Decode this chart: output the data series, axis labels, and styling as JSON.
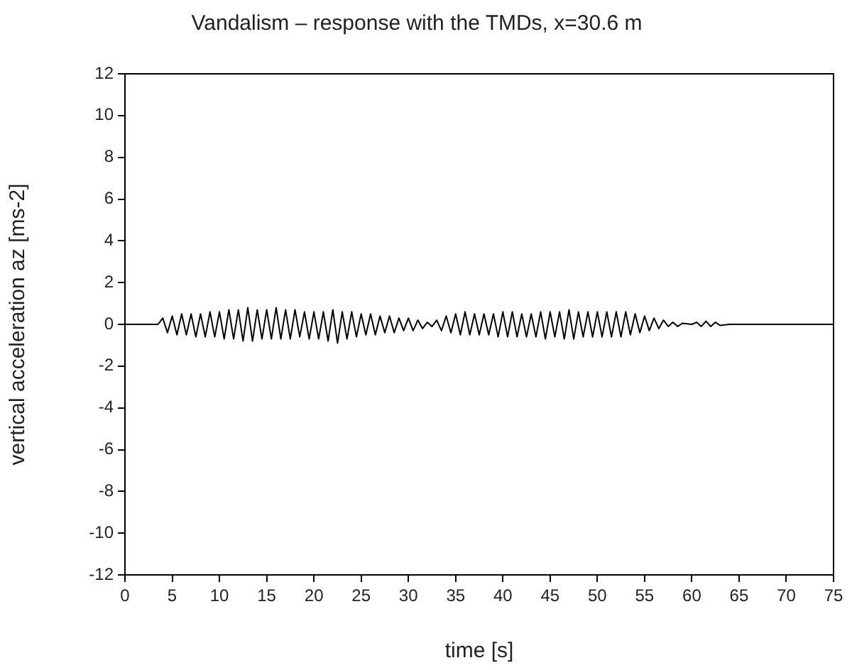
{
  "chart_data": {
    "type": "line",
    "title": "Vandalism – response with the TMDs, x=30.6 m",
    "xlabel": "time [s]",
    "ylabel": "vertical acceleration az [ms-2]",
    "xlim": [
      0,
      75
    ],
    "xticks": [
      0,
      5,
      10,
      15,
      20,
      25,
      30,
      35,
      40,
      45,
      50,
      55,
      60,
      65,
      70,
      75
    ],
    "ylim": [
      -12,
      12
    ],
    "yticks": [
      -12,
      -10,
      -8,
      -6,
      -4,
      -2,
      0,
      2,
      4,
      6,
      8,
      10,
      12
    ],
    "grid": false,
    "legend": false,
    "marker": "none",
    "line_style": "solid",
    "series": [
      {
        "color": "#000000",
        "x": [
          0,
          3.5,
          4,
          4.5,
          5,
          5.5,
          6,
          6.5,
          7,
          7.5,
          8,
          8.5,
          9,
          9.5,
          10,
          10.5,
          11,
          11.5,
          12,
          12.5,
          13,
          13.5,
          14,
          14.5,
          15,
          15.5,
          16,
          16.5,
          17,
          17.5,
          18,
          18.5,
          19,
          19.5,
          20,
          20.5,
          21,
          21.5,
          22,
          22.5,
          23,
          23.5,
          24,
          24.5,
          25,
          25.5,
          26,
          26.5,
          27,
          27.5,
          28,
          28.5,
          29,
          29.5,
          30,
          30.5,
          31,
          31.5,
          32,
          32.5,
          33,
          33.5,
          34,
          34.5,
          35,
          35.5,
          36,
          36.5,
          37,
          37.5,
          38,
          38.5,
          39,
          39.5,
          40,
          40.5,
          41,
          41.5,
          42,
          42.5,
          43,
          43.5,
          44,
          44.5,
          45,
          45.5,
          46,
          46.5,
          47,
          47.5,
          48,
          48.5,
          49,
          49.5,
          50,
          50.5,
          51,
          51.5,
          52,
          52.5,
          53,
          53.5,
          54,
          54.5,
          55,
          55.5,
          56,
          56.5,
          57,
          57.5,
          58,
          58.5,
          59,
          60,
          60.5,
          61,
          61.5,
          62,
          62.5,
          63,
          64,
          75
        ],
        "values": [
          0,
          0,
          0.3,
          -0.4,
          0.4,
          -0.5,
          0.5,
          -0.5,
          0.5,
          -0.6,
          0.5,
          -0.6,
          0.6,
          -0.6,
          0.6,
          -0.7,
          0.7,
          -0.7,
          0.7,
          -0.8,
          0.8,
          -0.8,
          0.7,
          -0.7,
          0.7,
          -0.7,
          0.8,
          -0.7,
          0.7,
          -0.7,
          0.7,
          -0.6,
          0.6,
          -0.7,
          0.6,
          -0.7,
          0.6,
          -0.8,
          0.7,
          -0.9,
          0.6,
          -0.7,
          0.6,
          -0.6,
          0.5,
          -0.5,
          0.5,
          -0.5,
          0.4,
          -0.4,
          0.4,
          -0.4,
          0.3,
          -0.3,
          0.3,
          -0.3,
          0.2,
          -0.2,
          0.1,
          -0.1,
          0.2,
          -0.3,
          0.4,
          -0.4,
          0.5,
          -0.5,
          0.6,
          -0.5,
          0.5,
          -0.5,
          0.5,
          -0.5,
          0.5,
          -0.6,
          0.6,
          -0.6,
          0.6,
          -0.6,
          0.5,
          -0.6,
          0.5,
          -0.6,
          0.6,
          -0.7,
          0.6,
          -0.6,
          0.6,
          -0.7,
          0.7,
          -0.7,
          0.6,
          -0.6,
          0.6,
          -0.6,
          0.6,
          -0.6,
          0.6,
          -0.6,
          0.6,
          -0.6,
          0.6,
          -0.5,
          0.5,
          -0.4,
          0.4,
          -0.3,
          0.3,
          -0.2,
          0.2,
          -0.1,
          0.1,
          -0.1,
          0.05,
          0,
          0.1,
          -0.1,
          0.15,
          -0.1,
          0.1,
          -0.05,
          0,
          0
        ]
      }
    ]
  }
}
